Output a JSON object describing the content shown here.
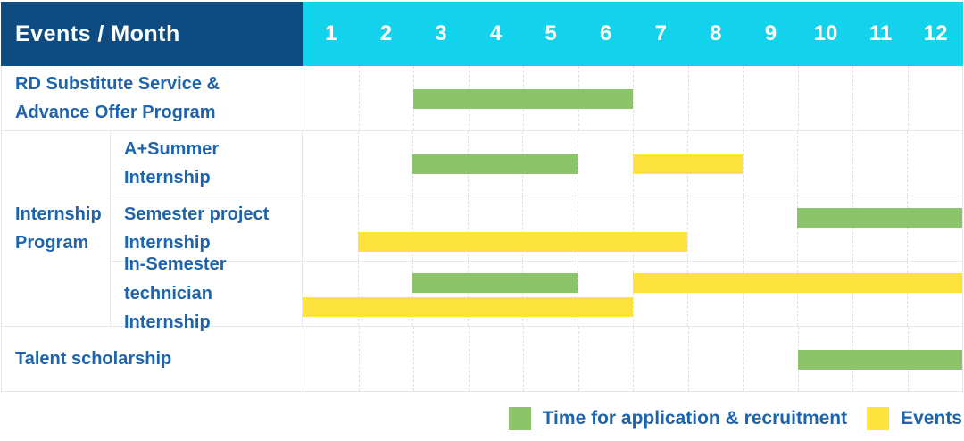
{
  "colors": {
    "navy": "#0E4B80",
    "cyan": "#12D2EC",
    "green": "#8CC46C",
    "yellow": "#FFE33D",
    "text_blue": "#1D64AD",
    "grid": "#E7E7E7"
  },
  "header": {
    "label": "Events / Month",
    "months": [
      "1",
      "2",
      "3",
      "4",
      "5",
      "6",
      "7",
      "8",
      "9",
      "10",
      "11",
      "12"
    ]
  },
  "rows": {
    "rd": {
      "label": "RD Substitute Service &\nAdvance Offer Program"
    },
    "group": {
      "label": "Internship Program"
    },
    "a_summer": {
      "label": "A+Summer\nInternship"
    },
    "semester_project": {
      "label": "Semester project\nInternship"
    },
    "in_semester": {
      "label": "In-Semester\ntechnician Internship"
    },
    "talent": {
      "label": "Talent scholarship"
    }
  },
  "bars": {
    "rd": [
      {
        "color": "green",
        "start": 3,
        "end": 6,
        "lane": "single"
      }
    ],
    "a_summer": [
      {
        "color": "green",
        "start": 3,
        "end": 5,
        "lane": "single"
      },
      {
        "color": "yellow",
        "start": 7,
        "end": 8,
        "lane": "single"
      }
    ],
    "semester_project": [
      {
        "color": "green",
        "start": 10,
        "end": 12,
        "lane": "top"
      },
      {
        "color": "yellow",
        "start": 2,
        "end": 7,
        "lane": "bottom"
      }
    ],
    "in_semester": [
      {
        "color": "green",
        "start": 3,
        "end": 5,
        "lane": "top"
      },
      {
        "color": "yellow",
        "start": 7,
        "end": 12,
        "lane": "top"
      },
      {
        "color": "yellow",
        "start": 1,
        "end": 6,
        "lane": "bottom"
      }
    ],
    "talent": [
      {
        "color": "green",
        "start": 10,
        "end": 12,
        "lane": "single"
      }
    ]
  },
  "legend": [
    {
      "color": "green",
      "label": "Time for application & recruitment"
    },
    {
      "color": "yellow",
      "label": "Events"
    }
  ],
  "chart_data": {
    "type": "bar",
    "subtype": "gantt",
    "title": "Events / Month",
    "xlabel": "Month",
    "x_ticks": [
      1,
      2,
      3,
      4,
      5,
      6,
      7,
      8,
      9,
      10,
      11,
      12
    ],
    "xlim": [
      1,
      12
    ],
    "grid": true,
    "legend_position": "bottom-right",
    "series_colors": {
      "Time for application & recruitment": "#8CC46C",
      "Events": "#FFE33D"
    },
    "tasks": [
      {
        "row": "RD Substitute Service & Advance Offer Program",
        "group": null,
        "series": "Time for application & recruitment",
        "start_month": 3,
        "end_month": 6
      },
      {
        "row": "A+Summer Internship",
        "group": "Internship Program",
        "series": "Time for application & recruitment",
        "start_month": 3,
        "end_month": 5
      },
      {
        "row": "A+Summer Internship",
        "group": "Internship Program",
        "series": "Events",
        "start_month": 7,
        "end_month": 8
      },
      {
        "row": "Semester project Internship",
        "group": "Internship Program",
        "series": "Time for application & recruitment",
        "start_month": 10,
        "end_month": 12
      },
      {
        "row": "Semester project Internship",
        "group": "Internship Program",
        "series": "Events",
        "start_month": 2,
        "end_month": 7
      },
      {
        "row": "In-Semester technician Internship",
        "group": "Internship Program",
        "series": "Time for application & recruitment",
        "start_month": 3,
        "end_month": 5
      },
      {
        "row": "In-Semester technician Internship",
        "group": "Internship Program",
        "series": "Events",
        "start_month": 7,
        "end_month": 12
      },
      {
        "row": "In-Semester technician Internship",
        "group": "Internship Program",
        "series": "Events",
        "start_month": 1,
        "end_month": 6
      },
      {
        "row": "Talent scholarship",
        "group": null,
        "series": "Time for application & recruitment",
        "start_month": 10,
        "end_month": 12
      }
    ]
  }
}
